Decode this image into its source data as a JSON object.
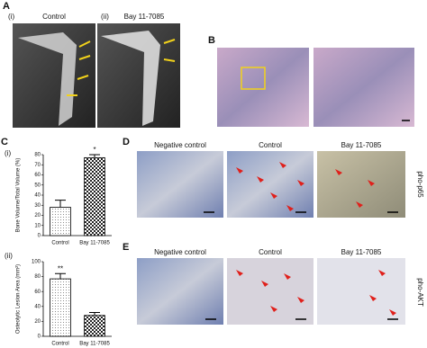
{
  "panels": {
    "A": {
      "label": "A",
      "sub_i": "(i)",
      "title_i": "Control",
      "sub_ii": "(ii)",
      "title_ii": "Bay 11-7085"
    },
    "B": {
      "label": "B"
    },
    "C": {
      "label": "C",
      "sub_i": "(i)",
      "sub_ii": "(ii)"
    },
    "D": {
      "label": "D",
      "columns": [
        "Negative control",
        "Control",
        "Bay 11-7085"
      ],
      "row_label": "pho-p65"
    },
    "E": {
      "label": "E",
      "columns": [
        "Negative control",
        "Control",
        "Bay 11-7085"
      ],
      "row_label": "pho-AKT"
    }
  },
  "chart_data": [
    {
      "type": "bar",
      "ylabel": "Bone Volume/Total Volume (%)",
      "categories": [
        "Control",
        "Bay 11-7085"
      ],
      "values": [
        28,
        77
      ],
      "errors": [
        7,
        3
      ],
      "annotation": "*",
      "ylim": [
        0,
        80
      ],
      "yticks": [
        0,
        10,
        20,
        30,
        40,
        50,
        60,
        70,
        80
      ]
    },
    {
      "type": "bar",
      "ylabel": "Osteolytic Lesion Area (mm²)",
      "categories": [
        "Control",
        "Bay 11-7085"
      ],
      "values": [
        77,
        28
      ],
      "errors": [
        7,
        4
      ],
      "annotation": "**",
      "ylim": [
        0,
        100
      ],
      "yticks": [
        0,
        20,
        40,
        60,
        80,
        100
      ]
    }
  ]
}
